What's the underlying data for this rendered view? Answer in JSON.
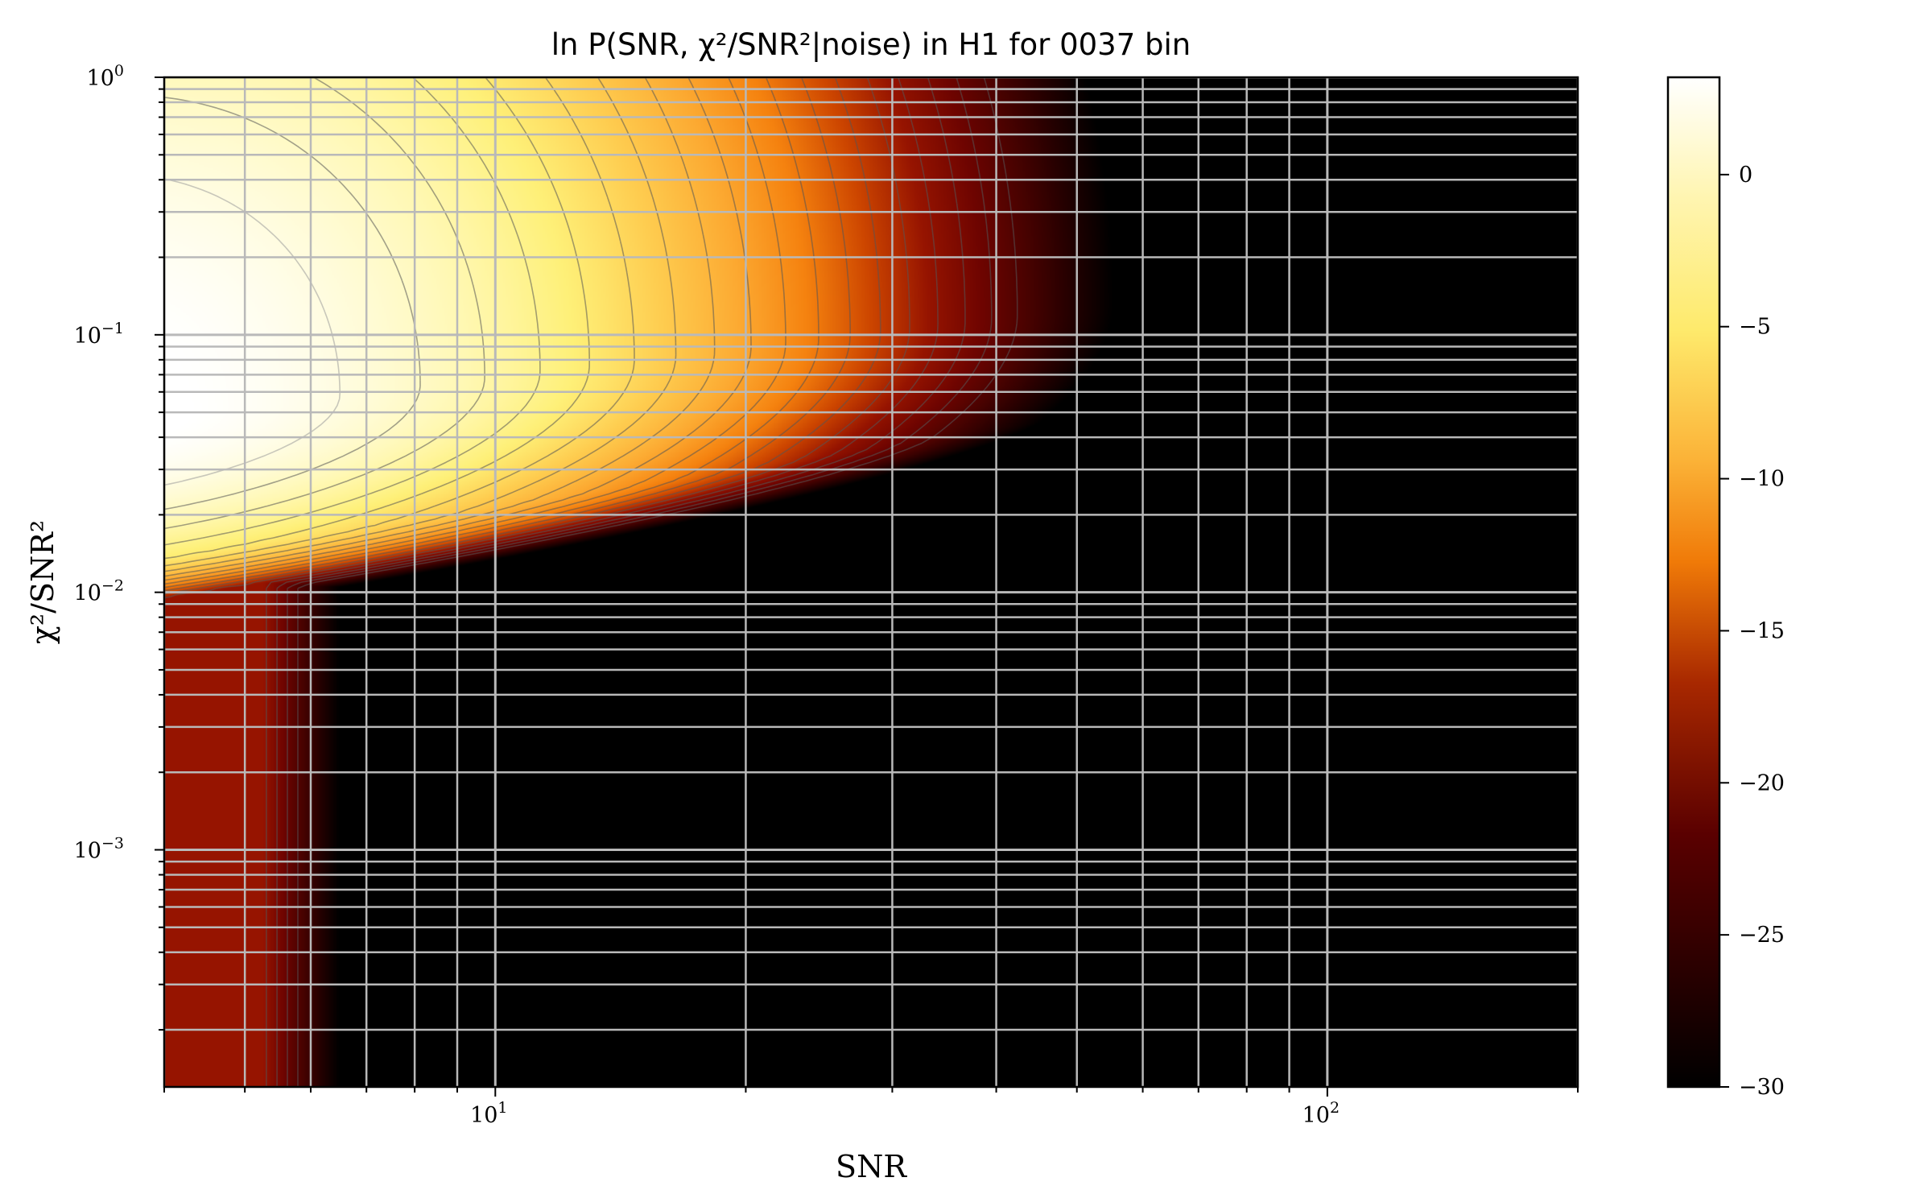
{
  "chart_data": {
    "type": "heatmap",
    "title": "ln P(SNR, χ²/SNR²|noise) in H1 for 0037 bin",
    "xlabel": "SNR",
    "ylabel": "χ²/SNR²",
    "xscale": "log",
    "yscale": "log",
    "xlim": [
      4,
      200
    ],
    "ylim": [
      0.00012,
      1
    ],
    "xticks": [
      {
        "value": 10,
        "base": "10",
        "exp": "1"
      },
      {
        "value": 100,
        "base": "10",
        "exp": "2"
      }
    ],
    "yticks": [
      {
        "value": 1,
        "base": "10",
        "exp": "0"
      },
      {
        "value": 0.1,
        "base": "10",
        "exp": "−1"
      },
      {
        "value": 0.01,
        "base": "10",
        "exp": "−2"
      },
      {
        "value": 0.001,
        "base": "10",
        "exp": "−3"
      }
    ],
    "grid": true,
    "colormap": "afmhot",
    "colorbar": {
      "range": [
        -30,
        3.2
      ],
      "ticks": [
        0,
        -5,
        -10,
        -15,
        -20,
        -25,
        -30
      ],
      "tick_labels": [
        "0",
        "−5",
        "−10",
        "−15",
        "−20",
        "−25",
        "−30"
      ]
    },
    "peak": {
      "snr": 4.3,
      "chi2_over_snr2": 0.05,
      "value": 3.2
    },
    "contours": {
      "interval": 1.5,
      "start": 1.5,
      "end": -25
    }
  }
}
